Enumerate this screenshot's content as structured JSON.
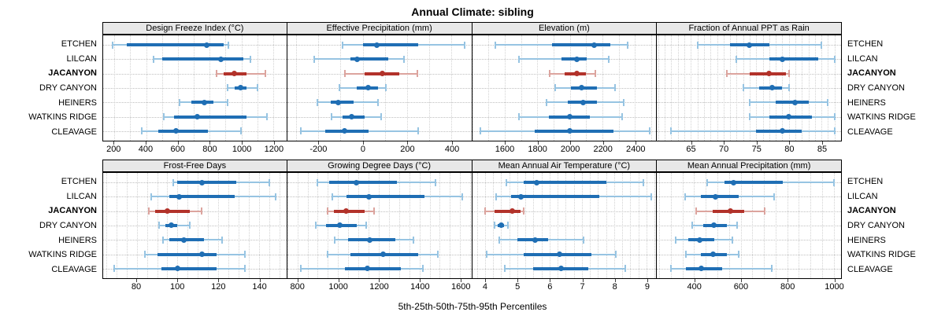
{
  "title": "Annual Climate: sibling",
  "footer": "5th-25th-50th-75th-95th Percentiles",
  "sites": [
    "ETCHEN",
    "LILCAN",
    "JACANYON",
    "DRY CANYON",
    "HEINERS",
    "WATKINS RIDGE",
    "CLEAVAGE"
  ],
  "highlight_site": "JACANYON",
  "colors": {
    "blue_dark": "#1f6eb4",
    "blue_light": "#97c4e2",
    "red_dark": "#b2322a",
    "red_light": "#dca49e",
    "strip_bg": "#e8e8e8",
    "panel_border": "#000000"
  },
  "chart_data": {
    "type": "dotplot-percentiles",
    "percentiles": [
      5,
      25,
      50,
      75,
      95
    ],
    "legend": "5th-25th-50th-75th-95th Percentiles",
    "layout": "2 rows x 4 columns, site labels on left and right",
    "panels": [
      {
        "key": "design_freeze_index",
        "title": "Design Freeze Index (°C)",
        "xlim": [
          130,
          1283
        ],
        "ticks": [
          200,
          400,
          600,
          800,
          1000,
          1200
        ],
        "minor_step": 100,
        "values": {
          "ETCHEN": [
            190,
            280,
            780,
            890,
            920
          ],
          "LILCAN": [
            445,
            500,
            870,
            1010,
            1055
          ],
          "JACANYON": [
            845,
            890,
            955,
            1030,
            1150
          ],
          "DRY CANYON": [
            915,
            955,
            995,
            1030,
            1100
          ],
          "HEINERS": [
            610,
            685,
            765,
            825,
            915
          ],
          "WATKINS RIDGE": [
            510,
            575,
            720,
            1030,
            1160
          ],
          "CLEAVAGE": [
            375,
            475,
            590,
            790,
            995
          ]
        }
      },
      {
        "key": "effective_precipitation",
        "title": "Effective Precipitation (mm)",
        "xlim": [
          -340,
          490
        ],
        "ticks": [
          -200,
          0,
          200,
          400
        ],
        "minor_step": 100,
        "values": {
          "ETCHEN": [
            -90,
            0,
            65,
            250,
            460
          ],
          "LILCAN": [
            -220,
            -55,
            -25,
            115,
            185
          ],
          "JACANYON": [
            -80,
            10,
            90,
            165,
            245
          ],
          "DRY CANYON": [
            -105,
            -25,
            25,
            70,
            105
          ],
          "HEINERS": [
            -205,
            -145,
            -110,
            -40,
            70
          ],
          "WATKINS RIDGE": [
            -140,
            -90,
            -50,
            10,
            85
          ],
          "CLEAVAGE": [
            -280,
            -170,
            -80,
            25,
            250
          ]
        }
      },
      {
        "key": "elevation",
        "title": "Elevation (m)",
        "xlim": [
          1400,
          2530
        ],
        "ticks": [
          1600,
          1800,
          2000,
          2200,
          2400
        ],
        "minor_step": 100,
        "values": {
          "ETCHEN": [
            1545,
            1890,
            2150,
            2250,
            2355
          ],
          "LILCAN": [
            1690,
            1950,
            2045,
            2105,
            2240
          ],
          "JACANYON": [
            1875,
            1970,
            2045,
            2100,
            2155
          ],
          "DRY CANYON": [
            1910,
            2005,
            2070,
            2165,
            2275
          ],
          "HEINERS": [
            1855,
            1985,
            2080,
            2165,
            2330
          ],
          "WATKINS RIDGE": [
            1690,
            1870,
            2000,
            2125,
            2320
          ],
          "CLEAVAGE": [
            1450,
            1785,
            2000,
            2270,
            2490
          ]
        }
      },
      {
        "key": "fraction_ppt_rain",
        "title": "Fraction of Annual PPT as Rain",
        "xlim": [
          59.8,
          88
        ],
        "ticks": [
          65,
          70,
          75,
          80,
          85
        ],
        "minor_step": 1,
        "values": {
          "ETCHEN": [
            66,
            71,
            74,
            77,
            85
          ],
          "LILCAN": [
            72,
            77,
            79,
            84.5,
            87
          ],
          "JACANYON": [
            70.5,
            74,
            77,
            79.5,
            80
          ],
          "DRY CANYON": [
            73,
            75.5,
            77.5,
            79,
            80
          ],
          "HEINERS": [
            74,
            78,
            81,
            83,
            86
          ],
          "WATKINS RIDGE": [
            74,
            77,
            80,
            83.5,
            87
          ],
          "CLEAVAGE": [
            62,
            75,
            79,
            82,
            87
          ]
        }
      },
      {
        "key": "frost_free_days",
        "title": "Frost-Free Days",
        "xlim": [
          63.5,
          153.5
        ],
        "ticks": [
          80,
          100,
          120,
          140
        ],
        "minor_step": 5,
        "values": {
          "ETCHEN": [
            98,
            100,
            112,
            129,
            145
          ],
          "LILCAN": [
            87,
            96,
            101,
            128,
            148
          ],
          "JACANYON": [
            86,
            89,
            95,
            106,
            112
          ],
          "DRY CANYON": [
            91,
            94,
            97,
            100,
            106
          ],
          "HEINERS": [
            93,
            96,
            103,
            113,
            122
          ],
          "WATKINS RIDGE": [
            84,
            90,
            112,
            119,
            133
          ],
          "CLEAVAGE": [
            69,
            92,
            100,
            119,
            133
          ]
        }
      },
      {
        "key": "growing_degree_days",
        "title": "Growing Degree Days (°C)",
        "xlim": [
          750,
          1655
        ],
        "ticks": [
          800,
          1000,
          1200,
          1400,
          1600
        ],
        "minor_step": 50,
        "values": {
          "ETCHEN": [
            900,
            955,
            1090,
            1290,
            1480
          ],
          "LILCAN": [
            970,
            1040,
            1150,
            1425,
            1610
          ],
          "JACANYON": [
            950,
            980,
            1040,
            1130,
            1175
          ],
          "DRY CANYON": [
            890,
            940,
            1010,
            1090,
            1140
          ],
          "HEINERS": [
            985,
            1050,
            1155,
            1280,
            1370
          ],
          "WATKINS RIDGE": [
            950,
            1060,
            1220,
            1395,
            1490
          ],
          "CLEAVAGE": [
            815,
            1035,
            1145,
            1310,
            1415
          ]
        }
      },
      {
        "key": "mean_annual_air_temperature",
        "title": "Mean Annual Air Temperature (°C)",
        "xlim": [
          3.6,
          9.3
        ],
        "ticks": [
          4,
          5,
          6,
          7,
          8,
          9
        ],
        "minor_step": 0.25,
        "values": {
          "ETCHEN": [
            4.65,
            5.2,
            5.6,
            7.75,
            8.9
          ],
          "LILCAN": [
            4.35,
            4.8,
            5.1,
            7.55,
            9.15
          ],
          "JACANYON": [
            4.0,
            4.3,
            4.85,
            5.1,
            5.2
          ],
          "DRY CANYON": [
            4.3,
            4.4,
            4.5,
            4.6,
            4.7
          ],
          "HEINERS": [
            4.45,
            5.0,
            5.55,
            5.95,
            7.05
          ],
          "WATKINS RIDGE": [
            4.05,
            5.2,
            6.3,
            7.3,
            8.05
          ],
          "CLEAVAGE": [
            4.6,
            5.5,
            6.35,
            7.2,
            8.35
          ]
        }
      },
      {
        "key": "mean_annual_precipitation",
        "title": "Mean Annual Precipitation (mm)",
        "xlim": [
          240,
          1032
        ],
        "ticks": [
          400,
          600,
          800,
          1000
        ],
        "minor_step": 50,
        "values": {
          "ETCHEN": [
            455,
            530,
            570,
            780,
            1000
          ],
          "LILCAN": [
            360,
            430,
            490,
            590,
            745
          ],
          "JACANYON": [
            410,
            480,
            555,
            615,
            705
          ],
          "DRY CANYON": [
            390,
            440,
            485,
            540,
            585
          ],
          "HEINERS": [
            320,
            375,
            425,
            485,
            565
          ],
          "WATKINS RIDGE": [
            365,
            430,
            480,
            540,
            590
          ],
          "CLEAVAGE": [
            300,
            365,
            430,
            520,
            735
          ]
        }
      }
    ]
  }
}
